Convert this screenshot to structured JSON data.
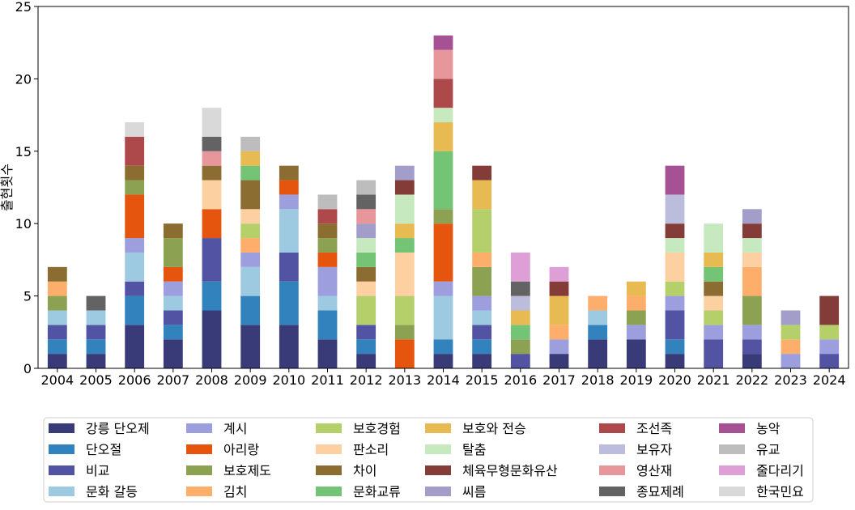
{
  "chart_data": {
    "type": "bar",
    "stacked": true,
    "title": "",
    "xlabel": "",
    "ylabel": "출현횟수",
    "ylim": [
      0,
      25
    ],
    "yticks": [
      0,
      5,
      10,
      15,
      20,
      25
    ],
    "grid": false,
    "legend_position": "bottom",
    "categories": [
      "2004",
      "2005",
      "2006",
      "2007",
      "2008",
      "2009",
      "2010",
      "2011",
      "2012",
      "2013",
      "2014",
      "2015",
      "2016",
      "2017",
      "2018",
      "2019",
      "2020",
      "2021",
      "2022",
      "2023",
      "2024"
    ],
    "series": [
      {
        "name": "강릉 단오제",
        "color": "#393b79",
        "values": [
          1,
          1,
          3,
          2,
          4,
          3,
          3,
          2,
          1,
          0,
          1,
          1,
          0,
          1,
          2,
          2,
          1,
          0,
          1,
          0,
          0
        ]
      },
      {
        "name": "단오절",
        "color": "#3182bd",
        "values": [
          1,
          1,
          2,
          1,
          2,
          2,
          3,
          2,
          1,
          0,
          1,
          1,
          0,
          0,
          1,
          0,
          1,
          0,
          0,
          0,
          0
        ]
      },
      {
        "name": "비교",
        "color": "#5254a3",
        "values": [
          1,
          1,
          1,
          1,
          3,
          0,
          2,
          0,
          1,
          0,
          0,
          1,
          1,
          0,
          0,
          0,
          2,
          2,
          1,
          0,
          1
        ]
      },
      {
        "name": "문화 갈등",
        "color": "#9ecae1",
        "values": [
          1,
          1,
          2,
          1,
          0,
          2,
          3,
          1,
          0,
          0,
          3,
          1,
          0,
          0,
          1,
          0,
          0,
          0,
          0,
          0,
          0
        ]
      },
      {
        "name": "계시",
        "color": "#9c9ede",
        "values": [
          0,
          0,
          1,
          1,
          0,
          1,
          1,
          2,
          0,
          0,
          1,
          1,
          0,
          1,
          0,
          1,
          1,
          1,
          1,
          1,
          1
        ]
      },
      {
        "name": "아리랑",
        "color": "#e6550d",
        "values": [
          0,
          0,
          3,
          1,
          2,
          0,
          1,
          1,
          0,
          2,
          4,
          0,
          0,
          0,
          0,
          0,
          0,
          0,
          0,
          0,
          0
        ]
      },
      {
        "name": "보호제도",
        "color": "#8ca252",
        "values": [
          1,
          0,
          1,
          2,
          0,
          0,
          0,
          1,
          0,
          1,
          1,
          2,
          1,
          0,
          0,
          1,
          0,
          0,
          2,
          0,
          0
        ]
      },
      {
        "name": "김치",
        "color": "#fdae6b",
        "values": [
          1,
          0,
          0,
          0,
          0,
          1,
          0,
          0,
          0,
          0,
          0,
          1,
          0,
          1,
          1,
          1,
          0,
          0,
          2,
          1,
          0
        ]
      },
      {
        "name": "보호경험",
        "color": "#b5cf6b",
        "values": [
          0,
          0,
          0,
          0,
          0,
          1,
          0,
          0,
          2,
          2,
          0,
          3,
          0,
          0,
          0,
          0,
          1,
          1,
          0,
          1,
          1
        ]
      },
      {
        "name": "판소리",
        "color": "#fdd0a2",
        "values": [
          0,
          0,
          0,
          0,
          2,
          1,
          0,
          0,
          1,
          3,
          0,
          0,
          0,
          0,
          0,
          0,
          2,
          1,
          1,
          0,
          0
        ]
      },
      {
        "name": "차이",
        "color": "#8c6d31",
        "values": [
          1,
          0,
          1,
          1,
          1,
          2,
          1,
          1,
          1,
          0,
          0,
          0,
          0,
          0,
          0,
          0,
          0,
          1,
          0,
          0,
          0
        ]
      },
      {
        "name": "문화교류",
        "color": "#74c476",
        "values": [
          0,
          0,
          0,
          0,
          0,
          1,
          0,
          0,
          1,
          1,
          4,
          0,
          1,
          0,
          0,
          0,
          0,
          1,
          0,
          0,
          0
        ]
      },
      {
        "name": "보호와 전승",
        "color": "#e7ba52",
        "values": [
          0,
          0,
          0,
          0,
          0,
          1,
          0,
          0,
          0,
          1,
          2,
          2,
          1,
          2,
          0,
          1,
          0,
          1,
          0,
          0,
          0
        ]
      },
      {
        "name": "탈춤",
        "color": "#c7e9c0",
        "values": [
          0,
          0,
          0,
          0,
          0,
          0,
          0,
          0,
          1,
          2,
          1,
          0,
          0,
          0,
          0,
          0,
          1,
          2,
          1,
          0,
          0
        ]
      },
      {
        "name": "체육무형문화유산",
        "color": "#843c39",
        "values": [
          0,
          0,
          0,
          0,
          0,
          0,
          0,
          0,
          0,
          1,
          0,
          1,
          0,
          1,
          0,
          0,
          1,
          0,
          1,
          0,
          2
        ]
      },
      {
        "name": "씨름",
        "color": "#a29dc9",
        "values": [
          0,
          0,
          0,
          0,
          0,
          0,
          0,
          0,
          1,
          1,
          0,
          0,
          0,
          0,
          0,
          0,
          0,
          0,
          1,
          1,
          0
        ]
      },
      {
        "name": "조선족",
        "color": "#ad494a",
        "values": [
          0,
          0,
          2,
          0,
          0,
          0,
          0,
          1,
          0,
          0,
          2,
          0,
          0,
          0,
          0,
          0,
          0,
          0,
          0,
          0,
          0
        ]
      },
      {
        "name": "보유자",
        "color": "#bcbddc",
        "values": [
          0,
          0,
          0,
          0,
          0,
          0,
          0,
          0,
          0,
          0,
          0,
          0,
          1,
          0,
          0,
          0,
          2,
          0,
          0,
          0,
          0
        ]
      },
      {
        "name": "영산재",
        "color": "#e7969c",
        "values": [
          0,
          0,
          0,
          0,
          1,
          0,
          0,
          0,
          1,
          0,
          2,
          0,
          0,
          0,
          0,
          0,
          0,
          0,
          0,
          0,
          0
        ]
      },
      {
        "name": "종묘제례",
        "color": "#636363",
        "values": [
          0,
          1,
          0,
          0,
          1,
          0,
          0,
          0,
          1,
          0,
          0,
          0,
          1,
          0,
          0,
          0,
          0,
          0,
          0,
          0,
          0
        ]
      },
      {
        "name": "농악",
        "color": "#a55194",
        "values": [
          0,
          0,
          0,
          0,
          0,
          0,
          0,
          0,
          0,
          0,
          1,
          0,
          0,
          0,
          0,
          0,
          2,
          0,
          0,
          0,
          0
        ]
      },
      {
        "name": "유교",
        "color": "#bdbdbd",
        "values": [
          0,
          0,
          0,
          0,
          0,
          1,
          0,
          1,
          1,
          0,
          0,
          0,
          0,
          0,
          0,
          0,
          0,
          0,
          0,
          0,
          0
        ]
      },
      {
        "name": "줄다리기",
        "color": "#de9ed6",
        "values": [
          0,
          0,
          0,
          0,
          0,
          0,
          0,
          0,
          0,
          0,
          0,
          0,
          2,
          1,
          0,
          0,
          0,
          0,
          0,
          0,
          0
        ]
      },
      {
        "name": "한국민요",
        "color": "#d9d9d9",
        "values": [
          0,
          0,
          1,
          0,
          2,
          0,
          0,
          0,
          0,
          0,
          0,
          0,
          0,
          0,
          0,
          0,
          0,
          0,
          0,
          0,
          0
        ]
      }
    ]
  }
}
